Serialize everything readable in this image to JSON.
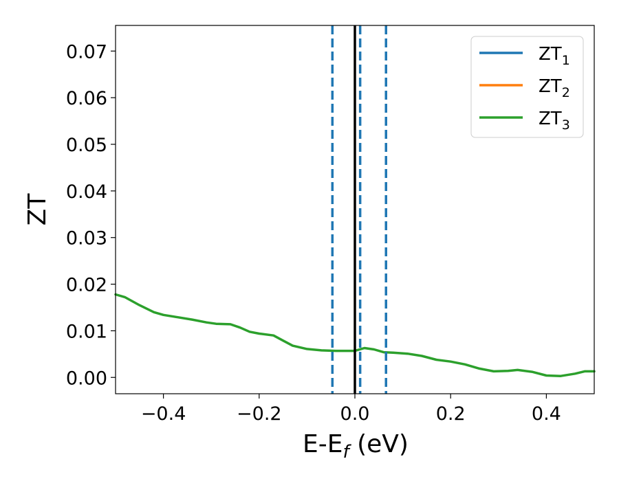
{
  "chart_data": {
    "type": "line",
    "xlabel_main": "E-E",
    "xlabel_sub": "f",
    "xlabel_unit": " (eV)",
    "ylabel": "ZT",
    "xlim": [
      -0.5,
      0.5
    ],
    "ylim": [
      -0.0035,
      0.0755
    ],
    "x_ticks": [
      -0.4,
      -0.2,
      0.0,
      0.2,
      0.4
    ],
    "x_tick_labels": [
      "−0.4",
      "−0.2",
      "0.0",
      "0.2",
      "0.4"
    ],
    "y_ticks": [
      0.0,
      0.01,
      0.02,
      0.03,
      0.04,
      0.05,
      0.06,
      0.07
    ],
    "y_tick_labels": [
      "0.00",
      "0.01",
      "0.02",
      "0.03",
      "0.04",
      "0.05",
      "0.06",
      "0.07"
    ],
    "grid": false,
    "legend_position": "top-right",
    "series": [
      {
        "name": "ZT",
        "subscript": "1",
        "color": "#1f77b4",
        "x": [],
        "y": []
      },
      {
        "name": "ZT",
        "subscript": "2",
        "color": "#ff7f0e",
        "x": [],
        "y": []
      },
      {
        "name": "ZT",
        "subscript": "3",
        "color": "#2ca02c",
        "x": [
          -0.5,
          -0.48,
          -0.45,
          -0.42,
          -0.4,
          -0.37,
          -0.34,
          -0.31,
          -0.29,
          -0.26,
          -0.24,
          -0.22,
          -0.2,
          -0.17,
          -0.15,
          -0.13,
          -0.1,
          -0.07,
          -0.04,
          0.0,
          0.02,
          0.04,
          0.06,
          0.08,
          0.11,
          0.14,
          0.17,
          0.2,
          0.23,
          0.26,
          0.29,
          0.32,
          0.34,
          0.37,
          0.4,
          0.43,
          0.46,
          0.48,
          0.5
        ],
        "y": [
          0.0178,
          0.0172,
          0.0155,
          0.014,
          0.0134,
          0.0129,
          0.0124,
          0.0118,
          0.0115,
          0.0114,
          0.0107,
          0.0098,
          0.0094,
          0.009,
          0.0079,
          0.0068,
          0.0061,
          0.0058,
          0.0057,
          0.0057,
          0.0063,
          0.006,
          0.0054,
          0.0053,
          0.0051,
          0.0046,
          0.0038,
          0.0034,
          0.0028,
          0.0019,
          0.0013,
          0.0014,
          0.0016,
          0.0012,
          0.0004,
          0.0003,
          0.0008,
          0.0013,
          0.0013
        ]
      }
    ],
    "vlines": [
      {
        "x": 0.0,
        "style": "solid",
        "color": "#000000"
      },
      {
        "x": -0.047,
        "style": "dashed",
        "color": "#1f77b4"
      },
      {
        "x": 0.011,
        "style": "dashed",
        "color": "#1f77b4"
      },
      {
        "x": 0.065,
        "style": "dashed",
        "color": "#1f77b4"
      }
    ]
  }
}
